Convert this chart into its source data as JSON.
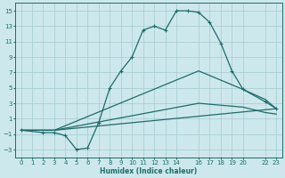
{
  "xlabel": "Humidex (Indice chaleur)",
  "background_color": "#cde8ec",
  "grid_color": "#aacfd4",
  "line_color": "#1e6b6b",
  "xlim": [
    -0.5,
    23.5
  ],
  "ylim": [
    -4.0,
    16.0
  ],
  "xticks": [
    0,
    1,
    2,
    3,
    4,
    5,
    6,
    7,
    8,
    9,
    10,
    11,
    12,
    13,
    14,
    16,
    17,
    18,
    19,
    20,
    22,
    23
  ],
  "yticks": [
    -3,
    -1,
    1,
    3,
    5,
    7,
    9,
    11,
    13,
    15
  ],
  "line1_x": [
    0,
    2,
    3,
    4,
    5,
    6,
    7,
    8,
    9,
    10,
    11,
    12,
    13,
    14,
    15,
    16,
    17,
    18,
    19,
    20,
    22,
    23
  ],
  "line1_y": [
    -0.5,
    -0.8,
    -0.8,
    -1.2,
    -3.0,
    -2.8,
    0.5,
    5.0,
    7.2,
    9.0,
    12.5,
    13.0,
    12.5,
    15.0,
    15.0,
    14.8,
    13.5,
    10.8,
    7.2,
    4.8,
    3.2,
    2.3
  ],
  "line2_x": [
    0,
    2,
    3,
    23
  ],
  "line2_y": [
    -0.5,
    -0.5,
    -0.5,
    2.3
  ],
  "line3_x": [
    0,
    3,
    16,
    20,
    22,
    23
  ],
  "line3_y": [
    -0.5,
    -0.5,
    7.2,
    4.8,
    3.5,
    2.3
  ],
  "line4_x": [
    0,
    3,
    16,
    20,
    22,
    23
  ],
  "line4_y": [
    -0.5,
    -0.5,
    3.0,
    2.5,
    1.8,
    1.6
  ]
}
